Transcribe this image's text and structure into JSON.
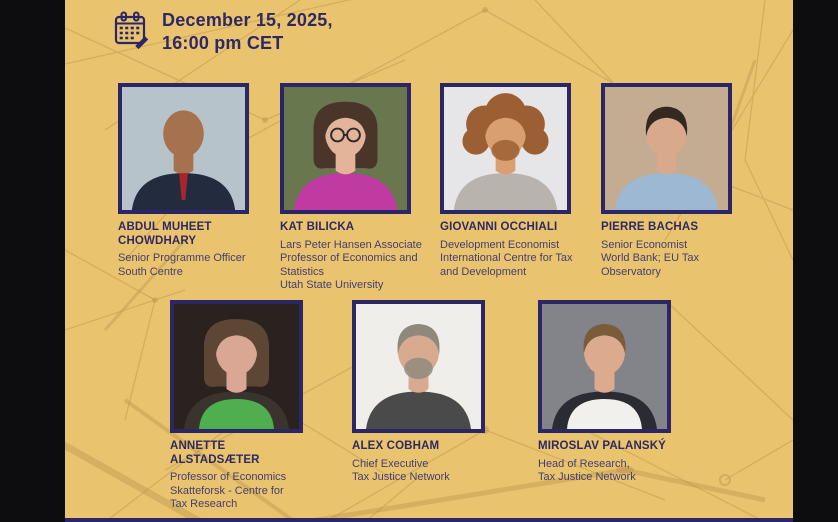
{
  "palette": {
    "gold": "#e9c36e",
    "navy": "#2b2766",
    "text1": "#2e2963",
    "text2": "#443e72",
    "pattern": "#b9904a",
    "letterbox": "#0d0d0f"
  },
  "header": {
    "icon": "calendar-icon",
    "date_line1": "December 15, 2025,",
    "date_line2": "16:00 pm CET"
  },
  "speakers": [
    {
      "name_lines": [
        "ABDUL MUHEET",
        "CHOWDHARY"
      ],
      "detail_lines": [
        "Senior Programme Officer",
        "South Centre"
      ],
      "photo": {
        "bg": "#b7c3cb",
        "skin": "#a5714f",
        "hair": "#2e2620",
        "clothing": "#232c3e",
        "accent": "#a8252e",
        "hair_style": "bald",
        "beard": false,
        "glasses": false,
        "tie": true,
        "scarf": false
      }
    },
    {
      "name_lines": [
        "KAT BILICKA"
      ],
      "detail_lines": [
        "Lars Peter Hansen Associate",
        "Professor of Economics and",
        "Statistics",
        "Utah State University"
      ],
      "photo": {
        "bg": "#69774f",
        "skin": "#e3b49a",
        "hair": "#4a352b",
        "clothing": "#bf3ba2",
        "accent": "#bf3ba2",
        "hair_style": "bob",
        "beard": false,
        "glasses": true,
        "tie": false,
        "scarf": false
      }
    },
    {
      "name_lines": [
        "GIOVANNI OCCHIALI"
      ],
      "detail_lines": [
        "Development Economist",
        "International Centre for Tax",
        "and Development"
      ],
      "photo": {
        "bg": "#e6e5e7",
        "skin": "#d99f70",
        "hair": "#9c5f33",
        "clothing": "#b9b3ad",
        "accent": "#b9b3ad",
        "hair_style": "curly",
        "beard": true,
        "glasses": false,
        "tie": false,
        "scarf": false
      }
    },
    {
      "name_lines": [
        "PIERRE BACHAS"
      ],
      "detail_lines": [
        "Senior Economist",
        "World Bank; EU Tax",
        "Observatory"
      ],
      "photo": {
        "bg": "#c3ac91",
        "skin": "#d9a98c",
        "hair": "#332921",
        "clothing": "#9db8d2",
        "accent": "#9db8d2",
        "hair_style": "short",
        "beard": false,
        "glasses": false,
        "tie": false,
        "scarf": false
      }
    },
    {
      "name_lines": [
        "ANNETTE",
        "ALSTADSÆTER"
      ],
      "detail_lines": [
        "Professor of Economics",
        "Skatteforsk - Centre for",
        "Tax Research"
      ],
      "photo": {
        "bg": "#29221e",
        "skin": "#d9a793",
        "hair": "#5d4634",
        "clothing": "#3a332e",
        "accent": "#4fae4e",
        "hair_style": "bob",
        "beard": false,
        "glasses": false,
        "tie": false,
        "scarf": true
      }
    },
    {
      "name_lines": [
        "ALEX COBHAM"
      ],
      "detail_lines": [
        "Chief Executive",
        "Tax Justice Network"
      ],
      "photo": {
        "bg": "#efeeea",
        "skin": "#d8ab91",
        "hair": "#8f897d",
        "clothing": "#4a4a4a",
        "accent": "#4a4a4a",
        "hair_style": "short",
        "beard": true,
        "glasses": false,
        "tie": false,
        "scarf": false
      }
    },
    {
      "name_lines": [
        "MIROSLAV PALANSKÝ"
      ],
      "detail_lines": [
        "Head of Research,",
        "Tax Justice Network"
      ],
      "photo": {
        "bg": "#83838a",
        "skin": "#dcab8e",
        "hair": "#7a5b3a",
        "clothing": "#2b2b33",
        "accent": "#f2f0ec",
        "hair_style": "short",
        "beard": false,
        "glasses": false,
        "tie": false,
        "scarf": true
      }
    }
  ]
}
